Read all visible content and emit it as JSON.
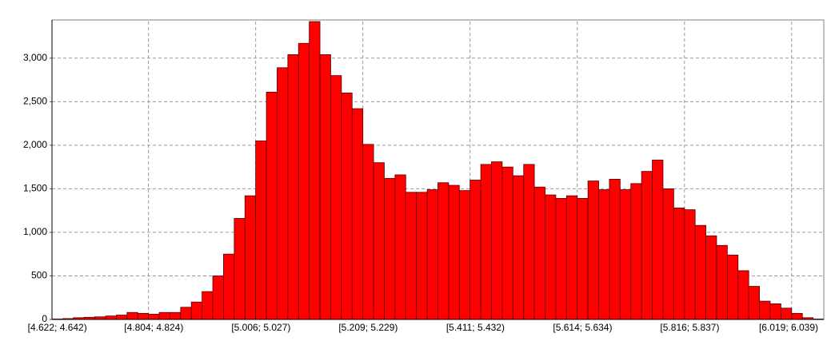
{
  "chart_data": {
    "type": "bar",
    "categories": [
      "[4.622; 4.642)",
      null,
      null,
      null,
      null,
      null,
      null,
      null,
      null,
      "[4.804; 4.824)",
      null,
      null,
      null,
      null,
      null,
      null,
      null,
      null,
      null,
      "[5.006; 5.027)",
      null,
      null,
      null,
      null,
      null,
      null,
      null,
      null,
      null,
      "[5.209; 5.229)",
      null,
      null,
      null,
      null,
      null,
      null,
      null,
      null,
      null,
      "[5.411; 5.432)",
      null,
      null,
      null,
      null,
      null,
      null,
      null,
      null,
      null,
      "[5.614; 5.634)",
      null,
      null,
      null,
      null,
      null,
      null,
      null,
      null,
      null,
      "[5.816; 5.837)",
      null,
      null,
      null,
      null,
      null,
      null,
      null,
      null,
      null,
      "[6.019; 6.039)",
      null,
      null
    ],
    "values": [
      5,
      10,
      20,
      25,
      30,
      40,
      50,
      80,
      70,
      60,
      80,
      80,
      140,
      200,
      320,
      500,
      750,
      1160,
      1420,
      2050,
      2610,
      2890,
      3040,
      3170,
      3420,
      3040,
      2800,
      2600,
      2420,
      2010,
      1800,
      1620,
      1660,
      1460,
      1460,
      1490,
      1570,
      1540,
      1480,
      1600,
      1780,
      1810,
      1750,
      1650,
      1780,
      1520,
      1430,
      1390,
      1420,
      1390,
      1590,
      1490,
      1610,
      1490,
      1560,
      1700,
      1830,
      1500,
      1280,
      1260,
      1080,
      960,
      850,
      740,
      560,
      380,
      210,
      180,
      130,
      70,
      20,
      5
    ],
    "color": "#ff0000",
    "ylim": [
      0,
      3420
    ],
    "yticks": [
      0,
      500,
      {
        "value": 1000,
        "label": "1,000"
      },
      {
        "value": 1500,
        "label": "1,500"
      },
      {
        "value": 2000,
        "label": "2,000"
      },
      {
        "value": 2500,
        "label": "2,500"
      },
      {
        "value": 3000,
        "label": "3,000"
      }
    ],
    "grid": true
  }
}
